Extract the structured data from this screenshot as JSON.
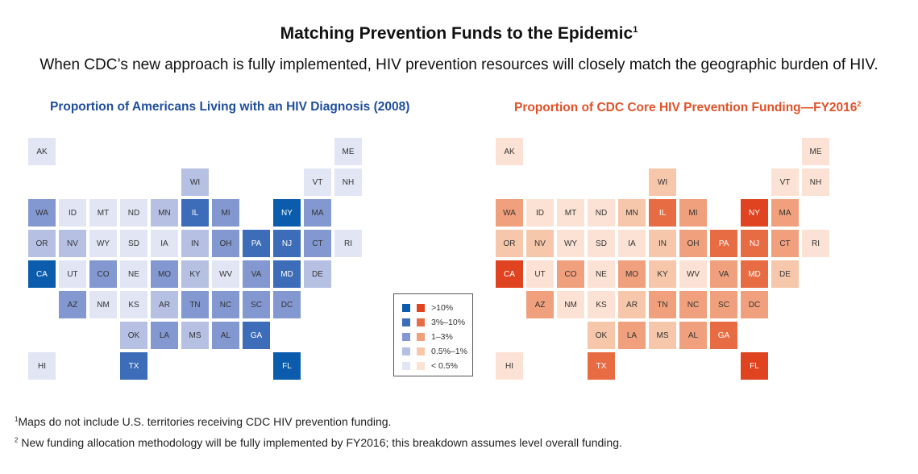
{
  "header": {
    "title": "Matching Prevention Funds to the Epidemic",
    "title_note": "1",
    "subtitle": "When CDC’s new approach is fully implemented, HIV prevention resources will closely match the geographic burden of HIV."
  },
  "maps": [
    {
      "title": "Proportion of Americans Living with an HIV Diagnosis (2008)",
      "note": ""
    },
    {
      "title": "Proportion of CDC Core HIV Prevention Funding—FY2016",
      "note": "2"
    }
  ],
  "colors": {
    "blue": [
      "#0b5cad",
      "#3d6cb8",
      "#8398d0",
      "#b5c0e3",
      "#e2e5f4"
    ],
    "orange": [
      "#e04320",
      "#e86c43",
      "#f0a07c",
      "#f6c7aa",
      "#fce2d4"
    ]
  },
  "legend": [
    ">10%",
    "3%–10%",
    "1–3%",
    "0.5%–1%",
    "< 0.5%"
  ],
  "states": [
    {
      "abbr": "AK",
      "hiv": 4,
      "fund": 4
    },
    {
      "abbr": "ME",
      "hiv": 4,
      "fund": 4
    },
    {
      "abbr": "WI",
      "hiv": 3,
      "fund": 3
    },
    {
      "abbr": "VT",
      "hiv": 4,
      "fund": 4
    },
    {
      "abbr": "NH",
      "hiv": 4,
      "fund": 4
    },
    {
      "abbr": "WA",
      "hiv": 2,
      "fund": 2
    },
    {
      "abbr": "ID",
      "hiv": 4,
      "fund": 4
    },
    {
      "abbr": "MT",
      "hiv": 4,
      "fund": 4
    },
    {
      "abbr": "ND",
      "hiv": 4,
      "fund": 4
    },
    {
      "abbr": "MN",
      "hiv": 3,
      "fund": 3
    },
    {
      "abbr": "IL",
      "hiv": 1,
      "fund": 1
    },
    {
      "abbr": "MI",
      "hiv": 2,
      "fund": 2
    },
    {
      "abbr": "NY",
      "hiv": 0,
      "fund": 0
    },
    {
      "abbr": "MA",
      "hiv": 2,
      "fund": 2
    },
    {
      "abbr": "OR",
      "hiv": 3,
      "fund": 3
    },
    {
      "abbr": "NV",
      "hiv": 3,
      "fund": 3
    },
    {
      "abbr": "WY",
      "hiv": 4,
      "fund": 4
    },
    {
      "abbr": "SD",
      "hiv": 4,
      "fund": 4
    },
    {
      "abbr": "IA",
      "hiv": 4,
      "fund": 4
    },
    {
      "abbr": "IN",
      "hiv": 3,
      "fund": 3
    },
    {
      "abbr": "OH",
      "hiv": 2,
      "fund": 2
    },
    {
      "abbr": "PA",
      "hiv": 1,
      "fund": 1
    },
    {
      "abbr": "NJ",
      "hiv": 1,
      "fund": 1
    },
    {
      "abbr": "CT",
      "hiv": 2,
      "fund": 2
    },
    {
      "abbr": "RI",
      "hiv": 4,
      "fund": 4
    },
    {
      "abbr": "CA",
      "hiv": 0,
      "fund": 0
    },
    {
      "abbr": "UT",
      "hiv": 4,
      "fund": 4
    },
    {
      "abbr": "CO",
      "hiv": 2,
      "fund": 2
    },
    {
      "abbr": "NE",
      "hiv": 4,
      "fund": 4
    },
    {
      "abbr": "MO",
      "hiv": 2,
      "fund": 2
    },
    {
      "abbr": "KY",
      "hiv": 3,
      "fund": 3
    },
    {
      "abbr": "WV",
      "hiv": 4,
      "fund": 4
    },
    {
      "abbr": "VA",
      "hiv": 2,
      "fund": 2
    },
    {
      "abbr": "MD",
      "hiv": 1,
      "fund": 1
    },
    {
      "abbr": "DE",
      "hiv": 3,
      "fund": 3
    },
    {
      "abbr": "AZ",
      "hiv": 2,
      "fund": 2
    },
    {
      "abbr": "NM",
      "hiv": 4,
      "fund": 4
    },
    {
      "abbr": "KS",
      "hiv": 4,
      "fund": 4
    },
    {
      "abbr": "AR",
      "hiv": 3,
      "fund": 3
    },
    {
      "abbr": "TN",
      "hiv": 2,
      "fund": 2
    },
    {
      "abbr": "NC",
      "hiv": 2,
      "fund": 2
    },
    {
      "abbr": "SC",
      "hiv": 2,
      "fund": 2
    },
    {
      "abbr": "DC",
      "hiv": 2,
      "fund": 2
    },
    {
      "abbr": "OK",
      "hiv": 3,
      "fund": 3
    },
    {
      "abbr": "LA",
      "hiv": 2,
      "fund": 2
    },
    {
      "abbr": "MS",
      "hiv": 3,
      "fund": 3
    },
    {
      "abbr": "AL",
      "hiv": 2,
      "fund": 2
    },
    {
      "abbr": "GA",
      "hiv": 1,
      "fund": 1
    },
    {
      "abbr": "HI",
      "hiv": 4,
      "fund": 4
    },
    {
      "abbr": "TX",
      "hiv": 1,
      "fund": 1
    },
    {
      "abbr": "FL",
      "hiv": 0,
      "fund": 0
    }
  ],
  "footnotes": [
    {
      "mark": "1",
      "text": "Maps do not include U.S. territories receiving CDC HIV prevention funding."
    },
    {
      "mark": "2",
      "text": " New funding allocation methodology will be fully implemented by FY2016; this breakdown assumes level overall funding."
    }
  ]
}
